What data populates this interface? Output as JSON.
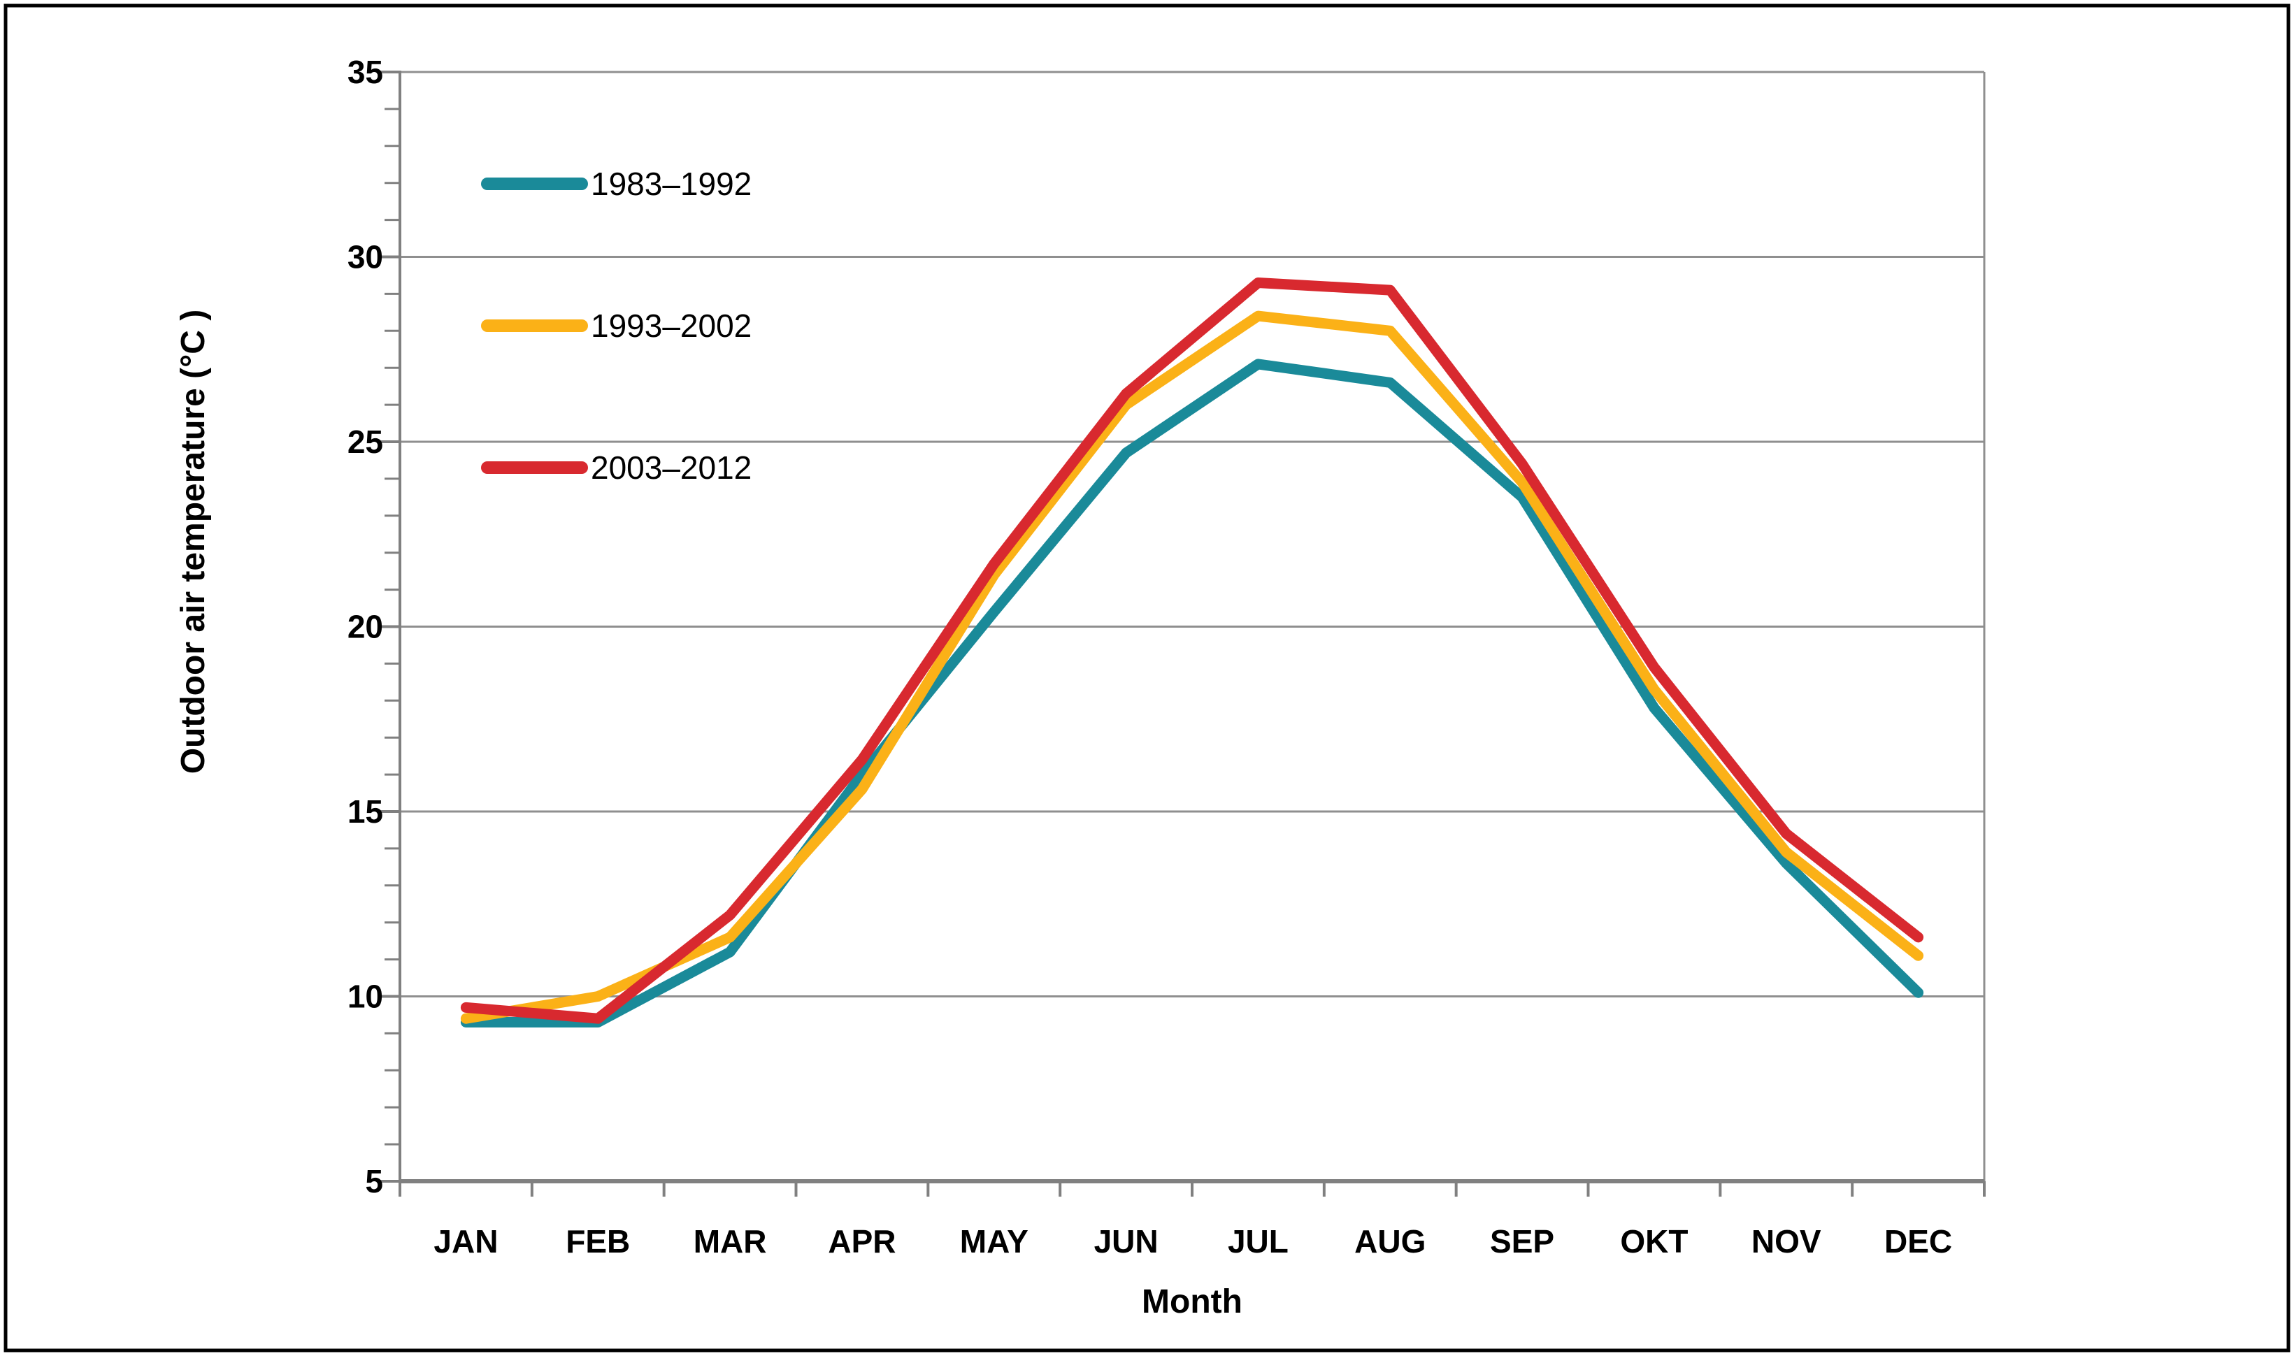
{
  "chart_data": {
    "type": "line",
    "title": "",
    "xlabel": "Month",
    "ylabel": "Outdoor air temperature (°C )",
    "categories": [
      "JAN",
      "FEB",
      "MAR",
      "APR",
      "MAY",
      "JUN",
      "JUL",
      "AUG",
      "SEP",
      "OKT",
      "NOV",
      "DEC"
    ],
    "ylim": [
      5,
      35
    ],
    "ytick_interval": 5,
    "yticks": [
      5,
      10,
      15,
      20,
      25,
      30,
      35
    ],
    "minor_tick_interval": 1,
    "grid": "horizontal-major",
    "legend_position": "top-left-inside",
    "series": [
      {
        "name": "1983–1992",
        "color": "#1A8A99",
        "values": [
          9.3,
          9.3,
          11.2,
          16.0,
          20.4,
          24.7,
          27.1,
          26.6,
          23.5,
          17.8,
          13.6,
          10.1
        ]
      },
      {
        "name": "1993–2002",
        "color": "#FBB117",
        "values": [
          9.4,
          10.0,
          11.6,
          15.6,
          21.4,
          26.0,
          28.4,
          28.0,
          23.9,
          18.3,
          13.9,
          11.1
        ]
      },
      {
        "name": "2003–2012",
        "color": "#D8292F",
        "values": [
          9.7,
          9.4,
          12.2,
          16.4,
          21.7,
          26.3,
          29.3,
          29.1,
          24.4,
          18.9,
          14.4,
          11.6
        ]
      }
    ]
  },
  "styles": {
    "background": "#FFFFFF",
    "border_color": "#000000",
    "grid_color": "#8F8F8F",
    "axis_color": "#808080",
    "text_color": "#000000"
  }
}
